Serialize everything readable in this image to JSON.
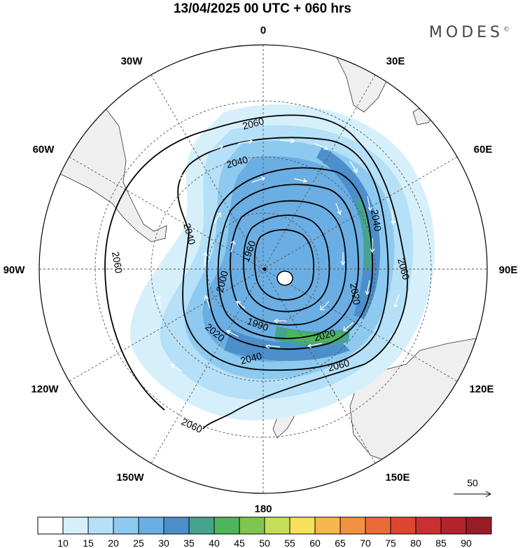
{
  "title": "13/04/2025  00 UTC  + 060 hrs",
  "brand": "MODES",
  "brand_mark": "©",
  "longitude_labels": [
    {
      "id": "lon-0",
      "text": "0"
    },
    {
      "id": "lon-30e",
      "text": "30E"
    },
    {
      "id": "lon-60e",
      "text": "60E"
    },
    {
      "id": "lon-90e",
      "text": "90E"
    },
    {
      "id": "lon-120e",
      "text": "120E"
    },
    {
      "id": "lon-150e",
      "text": "150E"
    },
    {
      "id": "lon-180",
      "text": "180"
    },
    {
      "id": "lon-150w",
      "text": "150W"
    },
    {
      "id": "lon-120w",
      "text": "120W"
    },
    {
      "id": "lon-90w",
      "text": "90W"
    },
    {
      "id": "lon-60w",
      "text": "60W"
    },
    {
      "id": "lon-30w",
      "text": "30W"
    }
  ],
  "contour_labels": [
    "2060",
    "2040",
    "2060",
    "2040",
    "2040",
    "2060",
    "1960",
    "2000",
    "2020",
    "1990",
    "2020",
    "2020",
    "2040",
    "2060",
    "2060"
  ],
  "wind_scale": {
    "value": "50"
  },
  "colorbar": {
    "ticks": [
      "10",
      "15",
      "20",
      "25",
      "30",
      "35",
      "40",
      "45",
      "50",
      "55",
      "60",
      "65",
      "70",
      "75",
      "80",
      "85",
      "90"
    ],
    "colors": [
      "#ffffff",
      "#d6f0fb",
      "#b5e0f7",
      "#8ecaf0",
      "#6aaee3",
      "#4c8fcb",
      "#46a38c",
      "#4db55a",
      "#7fc64e",
      "#c5de5a",
      "#f6e05c",
      "#f5b74e",
      "#f09140",
      "#ea6a37",
      "#de4632",
      "#c8312f",
      "#b2242a",
      "#981c25"
    ]
  },
  "colors": {
    "land": "#efefef",
    "ocean": "#ffffff",
    "grid": "#555555",
    "contour": "#000000"
  }
}
